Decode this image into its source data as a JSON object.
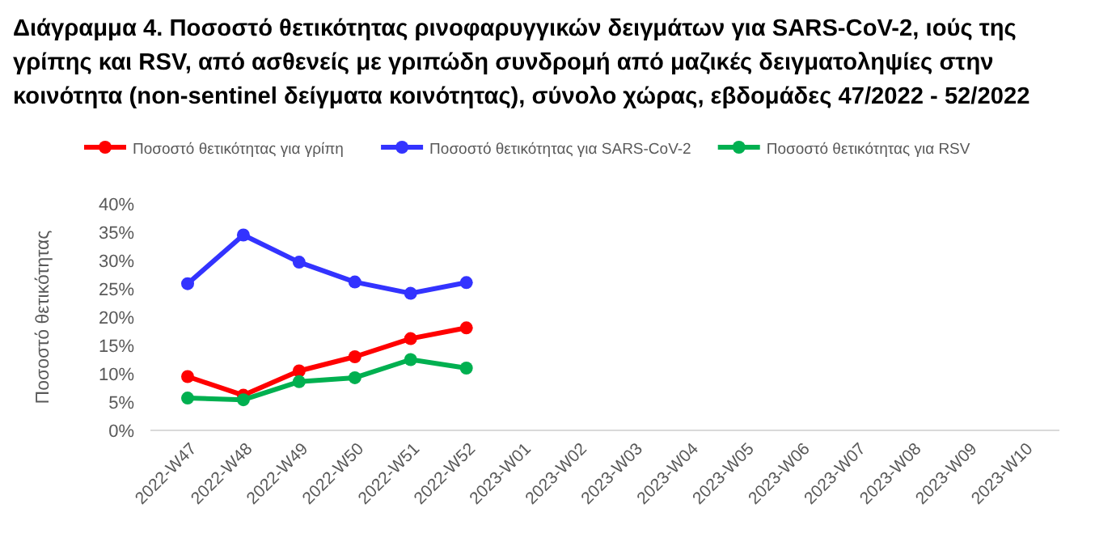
{
  "chart_data": {
    "type": "line",
    "title": "Διάγραμμα 4. Ποσοστό θετικότητας ρινοφαρυγγικών δειγμάτων για SARS-CoV-2, ιούς της γρίπης και RSV, από ασθενείς με γριπώδη συνδρομή από μαζικές δειγματοληψίες στην κοινότητα (non-sentinel δείγματα κοινότητας), σύνολο χώρας, εβδομάδες 47/2022 - 52/2022",
    "ylabel": "Ποσοστό θετικότητας",
    "categories": [
      "2022-W47",
      "2022-W48",
      "2022-W49",
      "2022-W50",
      "2022-W51",
      "2022-W52",
      "2023-W01",
      "2023-W02",
      "2023-W03",
      "2023-W04",
      "2023-W05",
      "2023-W06",
      "2023-W07",
      "2023-W08",
      "2023-W09",
      "2023-W10"
    ],
    "series": [
      {
        "name": "Ποσοστό θετικότητας για γρίπη",
        "color": "#ff0000",
        "values": [
          9.5,
          6.2,
          10.5,
          13.0,
          16.2,
          18.1,
          null,
          null,
          null,
          null,
          null,
          null,
          null,
          null,
          null,
          null
        ]
      },
      {
        "name": "Ποσοστό θετικότητας για SARS-CoV-2",
        "color": "#3333ff",
        "values": [
          25.9,
          34.5,
          29.7,
          26.2,
          24.2,
          26.1,
          null,
          null,
          null,
          null,
          null,
          null,
          null,
          null,
          null,
          null
        ]
      },
      {
        "name": "Ποσοστό θετικότητας για RSV",
        "color": "#00b050",
        "values": [
          5.7,
          5.4,
          8.6,
          9.3,
          12.5,
          11.0,
          null,
          null,
          null,
          null,
          null,
          null,
          null,
          null,
          null,
          null
        ]
      }
    ],
    "ylim": [
      0,
      40
    ],
    "yticks": [
      {
        "value": 0,
        "label": "0%"
      },
      {
        "value": 5,
        "label": "5%"
      },
      {
        "value": 10,
        "label": "10%"
      },
      {
        "value": 15,
        "label": "15%"
      },
      {
        "value": 20,
        "label": "20%"
      },
      {
        "value": 25,
        "label": "25%"
      },
      {
        "value": 30,
        "label": "30%"
      },
      {
        "value": 35,
        "label": "35%"
      },
      {
        "value": 40,
        "label": "40%"
      }
    ],
    "grid": false,
    "legend": "top",
    "marker": "circle",
    "line_style": "solid"
  }
}
